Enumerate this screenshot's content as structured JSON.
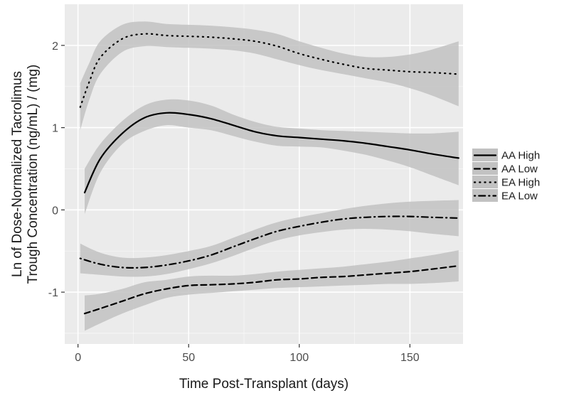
{
  "chart_data": {
    "type": "line",
    "xlabel": "Time Post-Transplant (days)",
    "ylabel_lines": [
      "Ln of Dose-Normalized Tacrolimus",
      "Trough Concentration (ng/mL) / (mg)"
    ],
    "xlim": [
      -6,
      174
    ],
    "ylim": [
      -1.63,
      2.5
    ],
    "x_ticks": [
      0,
      50,
      100,
      150
    ],
    "x_minor_ticks": [
      25,
      75,
      125
    ],
    "y_ticks": [
      -1,
      0,
      1,
      2
    ],
    "y_minor_ticks": [
      -1.5,
      -0.5,
      0.5,
      1.5
    ],
    "grid": true,
    "legend_position": "right",
    "colors": {
      "panel_background": "#ebebeb",
      "grid": "#ffffff",
      "line": "#000000",
      "ribbon": "#c2c2c2"
    },
    "series": [
      {
        "name": "AA High",
        "linetype": "solid",
        "x": [
          3,
          10,
          20,
          30,
          40,
          50,
          60,
          70,
          80,
          90,
          100,
          110,
          120,
          130,
          140,
          150,
          160,
          172
        ],
        "y": [
          0.21,
          0.62,
          0.93,
          1.12,
          1.18,
          1.16,
          1.11,
          1.03,
          0.95,
          0.9,
          0.88,
          0.86,
          0.84,
          0.81,
          0.77,
          0.73,
          0.68,
          0.63
        ],
        "lower": [
          -0.05,
          0.45,
          0.8,
          0.96,
          1.03,
          1.0,
          0.97,
          0.9,
          0.83,
          0.78,
          0.77,
          0.76,
          0.72,
          0.67,
          0.6,
          0.52,
          0.42,
          0.3
        ],
        "upper": [
          0.5,
          0.8,
          1.08,
          1.27,
          1.34,
          1.33,
          1.27,
          1.16,
          1.07,
          1.01,
          0.99,
          0.97,
          0.96,
          0.95,
          0.94,
          0.93,
          0.93,
          0.95
        ]
      },
      {
        "name": "AA Low",
        "linetype": "dashed",
        "x": [
          3,
          10,
          20,
          30,
          40,
          50,
          60,
          70,
          80,
          90,
          100,
          110,
          120,
          130,
          140,
          150,
          160,
          172
        ],
        "y": [
          -1.26,
          -1.2,
          -1.11,
          -1.02,
          -0.96,
          -0.92,
          -0.91,
          -0.9,
          -0.88,
          -0.85,
          -0.84,
          -0.82,
          -0.81,
          -0.79,
          -0.77,
          -0.75,
          -0.72,
          -0.68
        ],
        "lower": [
          -1.47,
          -1.38,
          -1.26,
          -1.16,
          -1.07,
          -1.03,
          -1.01,
          -0.99,
          -0.97,
          -0.95,
          -0.94,
          -0.93,
          -0.92,
          -0.91,
          -0.9,
          -0.9,
          -0.89,
          -0.87
        ],
        "upper": [
          -1.04,
          -1.02,
          -0.96,
          -0.88,
          -0.85,
          -0.81,
          -0.8,
          -0.8,
          -0.78,
          -0.75,
          -0.73,
          -0.71,
          -0.69,
          -0.66,
          -0.63,
          -0.59,
          -0.55,
          -0.49
        ]
      },
      {
        "name": "EA High",
        "linetype": "dotted",
        "x": [
          1,
          5,
          10,
          20,
          30,
          40,
          50,
          60,
          70,
          80,
          90,
          100,
          110,
          120,
          130,
          140,
          150,
          160,
          172
        ],
        "y": [
          1.25,
          1.55,
          1.85,
          2.08,
          2.14,
          2.12,
          2.11,
          2.1,
          2.08,
          2.05,
          1.99,
          1.9,
          1.83,
          1.77,
          1.72,
          1.7,
          1.68,
          1.67,
          1.65
        ],
        "lower": [
          0.97,
          1.33,
          1.65,
          1.92,
          1.99,
          1.98,
          1.97,
          1.96,
          1.94,
          1.9,
          1.83,
          1.76,
          1.7,
          1.65,
          1.6,
          1.55,
          1.48,
          1.39,
          1.26
        ],
        "upper": [
          1.54,
          1.78,
          2.05,
          2.25,
          2.29,
          2.26,
          2.25,
          2.24,
          2.22,
          2.19,
          2.14,
          2.05,
          1.97,
          1.9,
          1.86,
          1.86,
          1.89,
          1.95,
          2.05
        ]
      },
      {
        "name": "EA Low",
        "linetype": "dotdash",
        "x": [
          1,
          10,
          20,
          30,
          40,
          50,
          60,
          70,
          80,
          90,
          100,
          110,
          120,
          130,
          140,
          150,
          160,
          172
        ],
        "y": [
          -0.59,
          -0.66,
          -0.7,
          -0.7,
          -0.67,
          -0.62,
          -0.55,
          -0.45,
          -0.35,
          -0.26,
          -0.2,
          -0.15,
          -0.11,
          -0.09,
          -0.08,
          -0.08,
          -0.09,
          -0.1
        ],
        "lower": [
          -0.77,
          -0.79,
          -0.81,
          -0.81,
          -0.78,
          -0.72,
          -0.65,
          -0.56,
          -0.46,
          -0.37,
          -0.31,
          -0.27,
          -0.24,
          -0.23,
          -0.24,
          -0.26,
          -0.29,
          -0.32
        ],
        "upper": [
          -0.41,
          -0.52,
          -0.58,
          -0.58,
          -0.55,
          -0.5,
          -0.44,
          -0.34,
          -0.24,
          -0.15,
          -0.09,
          -0.04,
          0.01,
          0.05,
          0.08,
          0.1,
          0.11,
          0.12
        ]
      }
    ]
  }
}
